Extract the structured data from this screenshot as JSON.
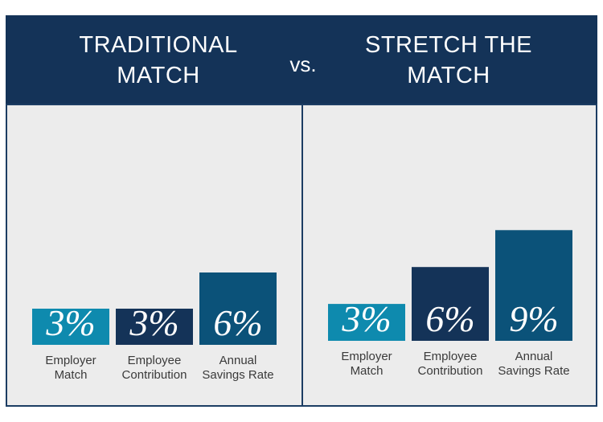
{
  "header": {
    "left_title_line1": "TRADITIONAL",
    "left_title_line2": "MATCH",
    "vs": "vs.",
    "right_title_line1": "STRETCH THE",
    "right_title_line2": "MATCH"
  },
  "colors": {
    "employer": "#0e8aae",
    "employee": "#143358",
    "annual": "#0b5279"
  },
  "chart_data": [
    {
      "type": "bar",
      "title": "TRADITIONAL MATCH",
      "categories": [
        "Employer Match",
        "Employee Contribution",
        "Annual Savings Rate"
      ],
      "category_lines": [
        [
          "Employer",
          "Match"
        ],
        [
          "Employee",
          "Contribution"
        ],
        [
          "Annual",
          "Savings Rate"
        ]
      ],
      "values": [
        3,
        3,
        6
      ],
      "data_labels": [
        "3%",
        "3%",
        "6%"
      ],
      "ylim": [
        0,
        10
      ]
    },
    {
      "type": "bar",
      "title": "STRETCH THE MATCH",
      "categories": [
        "Employer Match",
        "Employee Contribution",
        "Annual Savings Rate"
      ],
      "category_lines": [
        [
          "Employer",
          "Match"
        ],
        [
          "Employee",
          "Contribution"
        ],
        [
          "Annual",
          "Savings Rate"
        ]
      ],
      "values": [
        3,
        6,
        9
      ],
      "data_labels": [
        "3%",
        "6%",
        "9%"
      ],
      "ylim": [
        0,
        10
      ]
    }
  ]
}
